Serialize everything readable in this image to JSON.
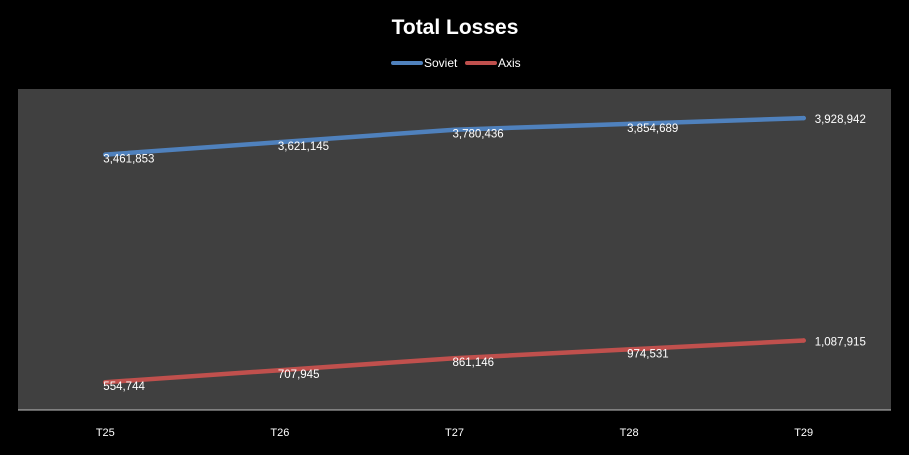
{
  "chart_data": {
    "type": "line",
    "title": "Total Losses",
    "categories": [
      "T25",
      "T26",
      "T27",
      "T28",
      "T29"
    ],
    "series": [
      {
        "name": "Soviet",
        "color": "#4f81bd",
        "values": [
          3461853,
          3621145,
          3780436,
          3854689,
          3928942
        ],
        "labels": [
          "3,461,853",
          "3,621,145",
          "3,780,436",
          "3,854,689",
          "3,928,942"
        ]
      },
      {
        "name": "Axis",
        "color": "#c0504d",
        "values": [
          554744,
          707945,
          861146,
          974531,
          1087915
        ],
        "labels": [
          "554,744",
          "707,945",
          "861,146",
          "974,531",
          "1,087,915"
        ]
      }
    ],
    "ylim": [
      200000,
      4300000
    ],
    "legend": "top",
    "grid": false,
    "plot_background": "#404040",
    "page_background": "#000000"
  }
}
